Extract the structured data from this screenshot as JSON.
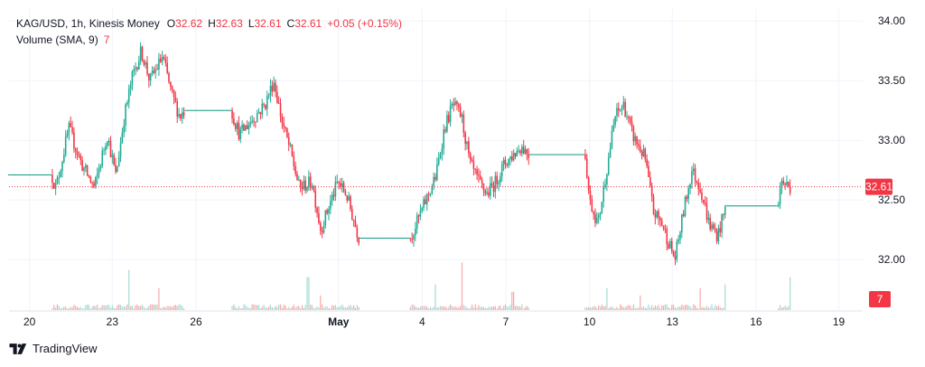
{
  "legend": {
    "symbol": "KAG/USD, 1h, Kinesis Money",
    "open_label": "O",
    "open": "32.62",
    "high_label": "H",
    "high": "32.63",
    "low_label": "L",
    "low": "32.61",
    "close_label": "C",
    "close": "32.61",
    "change": "+0.05 (+0.15%)",
    "volume_label": "Volume (SMA, 9)",
    "volume_value": "7"
  },
  "price_badge": "32.61",
  "volume_badge": "7",
  "brand": "TradingView",
  "colors": {
    "up": "#22ab94",
    "down": "#f23645",
    "grid": "#f0f3fa",
    "axis_text": "#131722",
    "badge": "#f23645",
    "flat": "#089981"
  },
  "chart_data": {
    "type": "candlestick",
    "title": "KAG/USD, 1h, Kinesis Money",
    "ylim": [
      31.6,
      34.1
    ],
    "y_ticks": [
      "34.00",
      "33.50",
      "33.00",
      "32.50",
      "32.00"
    ],
    "x_ticks": [
      "20",
      "23",
      "26",
      "May",
      "4",
      "7",
      "10",
      "13",
      "16",
      "19"
    ],
    "last_price": 32.61,
    "last_volume": 7,
    "grid": true,
    "series": [
      {
        "name": "Price",
        "anchors": [
          {
            "t": 0,
            "v": 32.71
          },
          {
            "t": 0.05,
            "v": 32.71
          },
          {
            "t": 0.055,
            "v": 32.6
          },
          {
            "t": 0.07,
            "v": 33.1
          },
          {
            "t": 0.085,
            "v": 32.8
          },
          {
            "t": 0.1,
            "v": 32.6
          },
          {
            "t": 0.115,
            "v": 33.05
          },
          {
            "t": 0.125,
            "v": 32.7
          },
          {
            "t": 0.135,
            "v": 33.2
          },
          {
            "t": 0.145,
            "v": 33.55
          },
          {
            "t": 0.155,
            "v": 33.75
          },
          {
            "t": 0.165,
            "v": 33.5
          },
          {
            "t": 0.18,
            "v": 33.7
          },
          {
            "t": 0.19,
            "v": 33.4
          },
          {
            "t": 0.2,
            "v": 33.2
          },
          {
            "t": 0.205,
            "v": 33.25
          },
          {
            "t": 0.26,
            "v": 33.25
          },
          {
            "t": 0.27,
            "v": 33.05
          },
          {
            "t": 0.3,
            "v": 33.3
          },
          {
            "t": 0.31,
            "v": 33.5
          },
          {
            "t": 0.32,
            "v": 33.15
          },
          {
            "t": 0.33,
            "v": 32.9
          },
          {
            "t": 0.34,
            "v": 32.6
          },
          {
            "t": 0.355,
            "v": 32.65
          },
          {
            "t": 0.365,
            "v": 32.25
          },
          {
            "t": 0.375,
            "v": 32.45
          },
          {
            "t": 0.385,
            "v": 32.65
          },
          {
            "t": 0.395,
            "v": 32.55
          },
          {
            "t": 0.405,
            "v": 32.3
          },
          {
            "t": 0.41,
            "v": 32.18
          },
          {
            "t": 0.47,
            "v": 32.18
          },
          {
            "t": 0.48,
            "v": 32.35
          },
          {
            "t": 0.5,
            "v": 32.7
          },
          {
            "t": 0.51,
            "v": 33.1
          },
          {
            "t": 0.52,
            "v": 33.3
          },
          {
            "t": 0.53,
            "v": 33.2
          },
          {
            "t": 0.54,
            "v": 32.8
          },
          {
            "t": 0.55,
            "v": 32.65
          },
          {
            "t": 0.56,
            "v": 32.55
          },
          {
            "t": 0.57,
            "v": 32.65
          },
          {
            "t": 0.58,
            "v": 32.8
          },
          {
            "t": 0.6,
            "v": 32.95
          },
          {
            "t": 0.61,
            "v": 32.88
          },
          {
            "t": 0.675,
            "v": 32.88
          },
          {
            "t": 0.68,
            "v": 32.5
          },
          {
            "t": 0.69,
            "v": 32.3
          },
          {
            "t": 0.7,
            "v": 32.75
          },
          {
            "t": 0.71,
            "v": 33.2
          },
          {
            "t": 0.72,
            "v": 33.3
          },
          {
            "t": 0.73,
            "v": 33.05
          },
          {
            "t": 0.745,
            "v": 32.85
          },
          {
            "t": 0.755,
            "v": 32.4
          },
          {
            "t": 0.765,
            "v": 32.3
          },
          {
            "t": 0.78,
            "v": 32.0
          },
          {
            "t": 0.79,
            "v": 32.4
          },
          {
            "t": 0.8,
            "v": 32.75
          },
          {
            "t": 0.81,
            "v": 32.6
          },
          {
            "t": 0.82,
            "v": 32.3
          },
          {
            "t": 0.83,
            "v": 32.2
          },
          {
            "t": 0.84,
            "v": 32.45
          },
          {
            "t": 0.9,
            "v": 32.45
          },
          {
            "t": 0.905,
            "v": 32.65
          },
          {
            "t": 0.915,
            "v": 32.61
          }
        ]
      },
      {
        "name": "Volume (SMA, 9)",
        "spikes": [
          {
            "t": 0.14,
            "v": 0.55
          },
          {
            "t": 0.175,
            "v": 0.3
          },
          {
            "t": 0.35,
            "v": 0.45
          },
          {
            "t": 0.365,
            "v": 0.2
          },
          {
            "t": 0.5,
            "v": 0.35
          },
          {
            "t": 0.53,
            "v": 0.65
          },
          {
            "t": 0.59,
            "v": 0.25
          },
          {
            "t": 0.7,
            "v": 0.3
          },
          {
            "t": 0.74,
            "v": 0.2
          },
          {
            "t": 0.81,
            "v": 0.3
          },
          {
            "t": 0.84,
            "v": 0.35
          },
          {
            "t": 0.915,
            "v": 0.45
          }
        ]
      }
    ]
  }
}
